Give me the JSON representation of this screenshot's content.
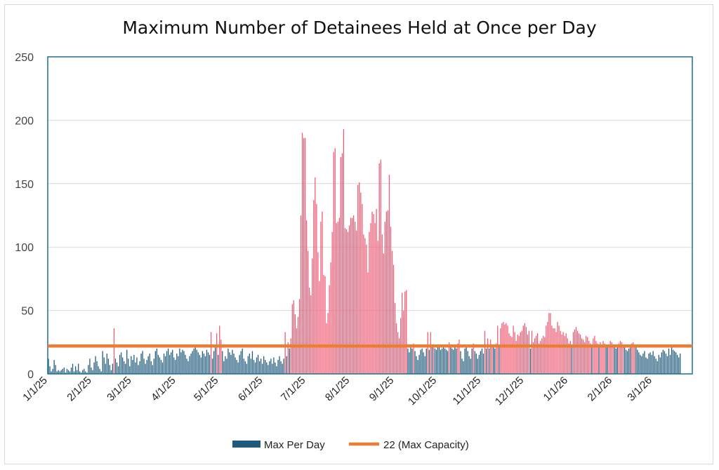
{
  "chart_data": {
    "type": "bar",
    "title": "Maximum Number of Detainees Held at Once per Day",
    "xlabel": "",
    "ylabel": "",
    "ylim": [
      0,
      250
    ],
    "y_ticks": [
      "0",
      "50",
      "100",
      "150",
      "200",
      "250"
    ],
    "x_ticks": [
      "1/1/25",
      "2/1/25",
      "3/1/25",
      "4/1/25",
      "5/1/25",
      "6/1/25",
      "7/1/25",
      "8/1/25",
      "9/1/25",
      "10/1/25",
      "11/1/25",
      "12/1/25",
      "1/1/26",
      "2/1/26",
      "3/1/26"
    ],
    "grid": "horizontal",
    "legend": "bottom",
    "x_start": "1/1/25",
    "series": [
      {
        "name": "Max Per Day",
        "color": "#1f5a7a",
        "over_capacity_color": "#f05a73",
        "values": [
          12,
          6,
          2,
          4,
          11,
          7,
          2,
          3,
          2,
          3,
          4,
          5,
          1,
          4,
          3,
          2,
          5,
          8,
          2,
          6,
          3,
          8,
          2,
          1,
          3,
          4,
          2,
          1,
          7,
          12,
          5,
          3,
          9,
          14,
          10,
          6,
          4,
          2,
          18,
          13,
          8,
          16,
          12,
          7,
          3,
          8,
          36,
          12,
          9,
          6,
          15,
          17,
          13,
          10,
          8,
          19,
          12,
          6,
          14,
          11,
          15,
          9,
          13,
          7,
          10,
          16,
          18,
          12,
          8,
          11,
          14,
          16,
          10,
          7,
          12,
          18,
          20,
          15,
          13,
          11,
          9,
          16,
          14,
          18,
          20,
          15,
          17,
          19,
          13,
          11,
          16,
          14,
          20,
          17,
          19,
          18,
          15,
          12,
          10,
          14,
          16,
          18,
          20,
          21,
          19,
          17,
          15,
          13,
          18,
          16,
          14,
          19,
          17,
          15,
          33,
          12,
          18,
          22,
          32,
          15,
          38,
          27,
          18,
          10,
          14,
          12,
          20,
          17,
          15,
          19,
          16,
          13,
          11,
          9,
          15,
          18,
          20,
          12,
          10,
          8,
          14,
          16,
          12,
          18,
          11,
          9,
          13,
          15,
          10,
          12,
          8,
          14,
          11,
          9,
          7,
          10,
          12,
          8,
          13,
          9,
          6,
          11,
          14,
          10,
          8,
          12,
          33,
          14,
          25,
          20,
          28,
          55,
          58,
          47,
          36,
          45,
          59,
          125,
          190,
          186,
          186,
          121,
          97,
          68,
          62,
          91,
          137,
          155,
          134,
          96,
          73,
          120,
          128,
          78,
          77,
          40,
          48,
          70,
          88,
          112,
          175,
          178,
          119,
          120,
          123,
          171,
          174,
          193,
          115,
          114,
          112,
          117,
          123,
          123,
          125,
          120,
          113,
          149,
          151,
          143,
          134,
          110,
          107,
          102,
          80,
          112,
          119,
          128,
          126,
          119,
          130,
          105,
          166,
          169,
          110,
          95,
          120,
          128,
          129,
          157,
          116,
          97,
          86,
          56,
          40,
          33,
          28,
          44,
          64,
          50,
          65,
          66,
          20,
          17,
          22,
          20,
          24,
          18,
          14,
          11,
          15,
          19,
          20,
          17,
          14,
          20,
          33,
          19,
          33,
          21,
          23,
          20,
          19,
          22,
          21,
          19,
          20,
          21,
          20,
          19,
          18,
          25,
          21,
          20,
          19,
          22,
          20,
          24,
          27,
          18,
          12,
          10,
          20,
          22,
          18,
          14,
          12,
          20,
          24,
          18,
          16,
          12,
          15,
          18,
          20,
          16,
          34,
          20,
          28,
          20,
          27,
          23,
          21,
          20,
          24,
          38,
          22,
          36,
          40,
          41,
          39,
          40,
          38,
          32,
          30,
          29,
          38,
          33,
          26,
          31,
          30,
          33,
          34,
          38,
          40,
          37,
          31,
          34,
          20,
          34,
          25,
          28,
          30,
          32,
          24,
          26,
          28,
          30,
          29,
          38,
          41,
          48,
          48,
          38,
          36,
          36,
          33,
          41,
          38,
          34,
          31,
          33,
          30,
          32,
          28,
          24,
          26,
          22,
          33,
          35,
          37,
          34,
          32,
          31,
          28,
          27,
          25,
          30,
          29,
          26,
          24,
          22,
          28,
          30,
          26,
          24,
          22,
          25,
          23,
          26,
          24,
          22,
          21,
          23,
          26,
          25,
          23,
          21,
          20,
          22,
          24,
          26,
          25,
          23,
          21,
          19,
          18,
          20,
          22,
          24,
          25,
          23,
          21,
          19,
          17,
          15,
          14,
          16,
          18,
          13,
          12,
          16,
          17,
          15,
          18,
          14,
          12,
          10,
          15,
          13,
          17,
          19,
          18,
          16,
          14,
          20,
          15,
          22,
          19,
          18,
          17,
          15,
          13,
          16
        ]
      },
      {
        "name": "22 (Max Capacity)",
        "color": "#ee7d31",
        "values": [
          22
        ]
      }
    ]
  }
}
